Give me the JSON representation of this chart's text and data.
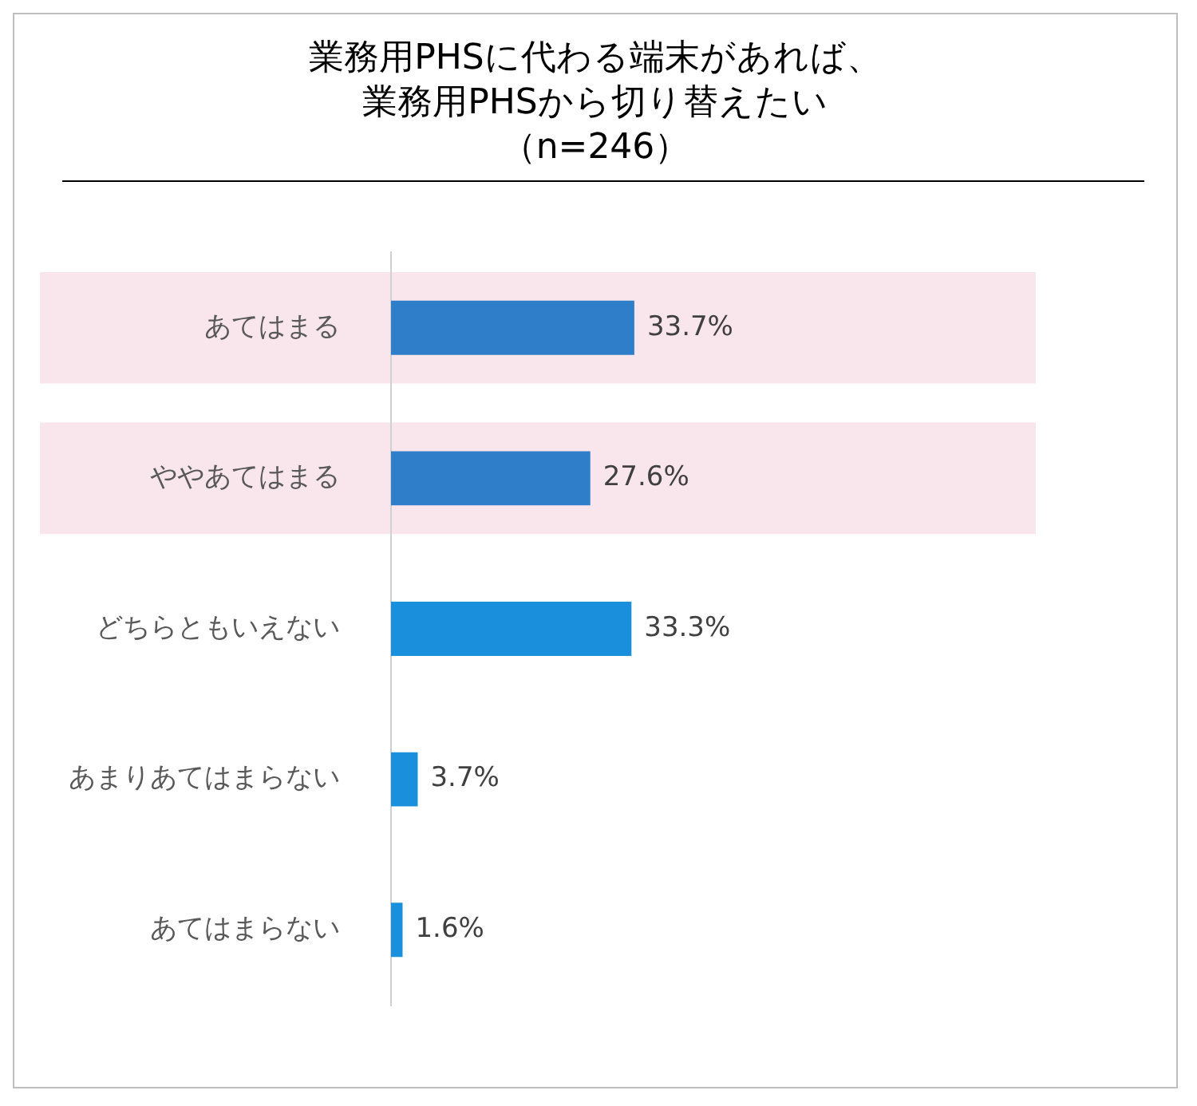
{
  "chart_data": {
    "type": "bar",
    "orientation": "horizontal",
    "title": "業務用PHSに代わる端末があれば、業務用PHSから切り替えたい",
    "subtitle": "（n=246）",
    "categories": [
      "あてはまる",
      "ややあてはまる",
      "どちらともいえない",
      "あまりあてはまらない",
      "あてはまらない"
    ],
    "values": [
      33.7,
      27.6,
      33.3,
      3.7,
      1.6
    ],
    "colors": [
      "#2e7ec9",
      "#2e7ec9",
      "#1a8fdb",
      "#1a8fdb",
      "#1a8fdb"
    ],
    "value_labels": [
      "33.7%",
      "27.6%",
      "33.3%",
      "3.7%",
      "1.6%"
    ],
    "bands": [
      {
        "axis": "y",
        "from": "あてはまる",
        "to": "あてはまる",
        "color": "#f9e6ed"
      },
      {
        "axis": "y",
        "from": "ややあてはまる",
        "to": "ややあてはまる",
        "color": "#f9e6ed"
      }
    ],
    "legend": false
  }
}
